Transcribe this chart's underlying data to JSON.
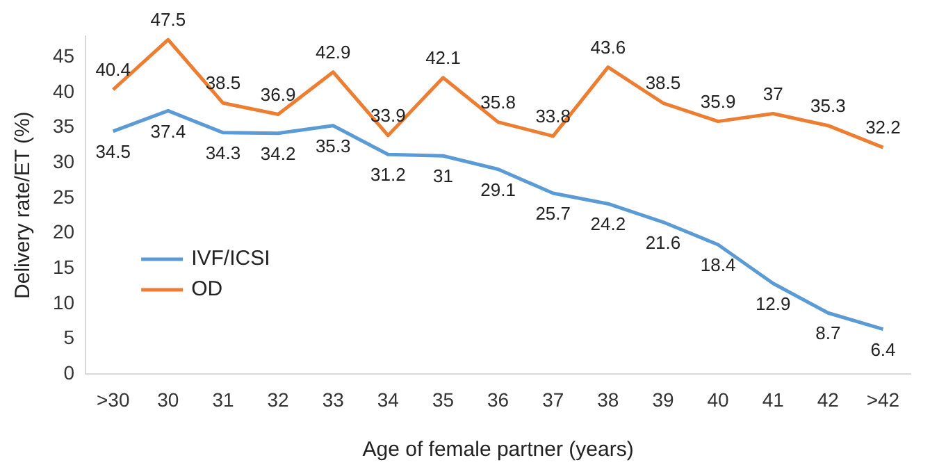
{
  "chart_data": {
    "type": "line",
    "xlabel": "Age of female partner (years)",
    "ylabel": "Delivery rate/ET (%)",
    "categories": [
      ">30",
      "30",
      "31",
      "32",
      "33",
      "34",
      "35",
      "36",
      "37",
      "38",
      "39",
      "40",
      "41",
      "42",
      ">42"
    ],
    "series": [
      {
        "name": "IVF/ICSI",
        "color": "#5b9bd5",
        "values": [
          34.5,
          37.4,
          34.3,
          34.2,
          35.3,
          31.2,
          31,
          29.1,
          25.7,
          24.2,
          21.6,
          18.4,
          12.9,
          8.7,
          6.4
        ]
      },
      {
        "name": "OD",
        "color": "#ed7d31",
        "values": [
          40.4,
          47.5,
          38.5,
          36.9,
          42.9,
          33.9,
          42.1,
          35.8,
          33.8,
          43.6,
          38.5,
          35.9,
          37,
          35.3,
          32.2
        ]
      }
    ],
    "ylim": [
      0,
      48
    ],
    "yticks": [
      0,
      5,
      10,
      15,
      20,
      25,
      30,
      35,
      40,
      45
    ],
    "grid": false,
    "legend": "left",
    "data_labels": true,
    "marker": "none",
    "line_style": "solid"
  }
}
